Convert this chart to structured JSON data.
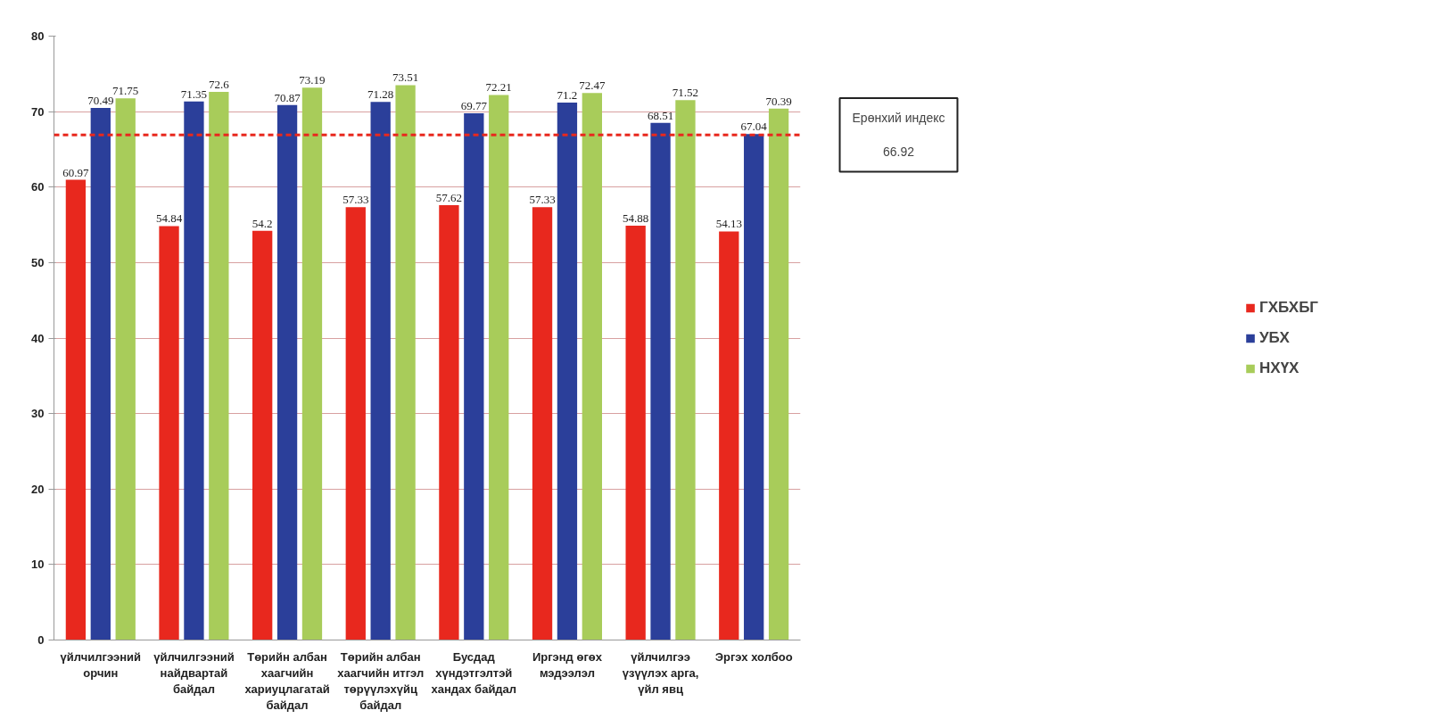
{
  "chart_data": {
    "type": "bar",
    "categories": [
      "үйлчилгээний\nорчин",
      "үйлчилгээний\nнайдвартай\nбайдал",
      "Төрийн албан\nхаагчийн\nхариуцлагатай\nбайдал",
      "Төрийн албан\nхаагчийн итгэл\nтөрүүлэхүйц\nбайдал",
      "Бусдад\nхүндэтгэлтэй\nхандах байдал",
      "Иргэнд өгөх\nмэдээлэл",
      "үйлчилгээ\nүзүүлэх арга,\nүйл явц",
      "Эргэх холбоо"
    ],
    "series": [
      {
        "name": "ГХБХБГ",
        "color": "#e8281e",
        "values": [
          60.97,
          54.84,
          54.2,
          57.33,
          57.62,
          57.33,
          54.88,
          54.13
        ]
      },
      {
        "name": "УБХ",
        "color": "#2b3f9a",
        "values": [
          70.49,
          71.35,
          70.87,
          71.28,
          69.77,
          71.2,
          68.51,
          67.04
        ]
      },
      {
        "name": "НХҮХ",
        "color": "#a8cc5a",
        "values": [
          71.75,
          72.6,
          73.19,
          73.51,
          72.21,
          72.47,
          71.52,
          70.39
        ]
      }
    ],
    "ylim": [
      0,
      80
    ],
    "yticks": [
      0,
      10,
      20,
      30,
      40,
      50,
      60,
      70,
      80
    ],
    "grid": "y",
    "legend": "right",
    "data_labels": true,
    "ref_lines": [
      {
        "axis": "y",
        "value": 66.92,
        "label": "Ерөнхий индекс\n\n66.92",
        "color": "#e8281e",
        "line_style": "dashed"
      }
    ]
  }
}
